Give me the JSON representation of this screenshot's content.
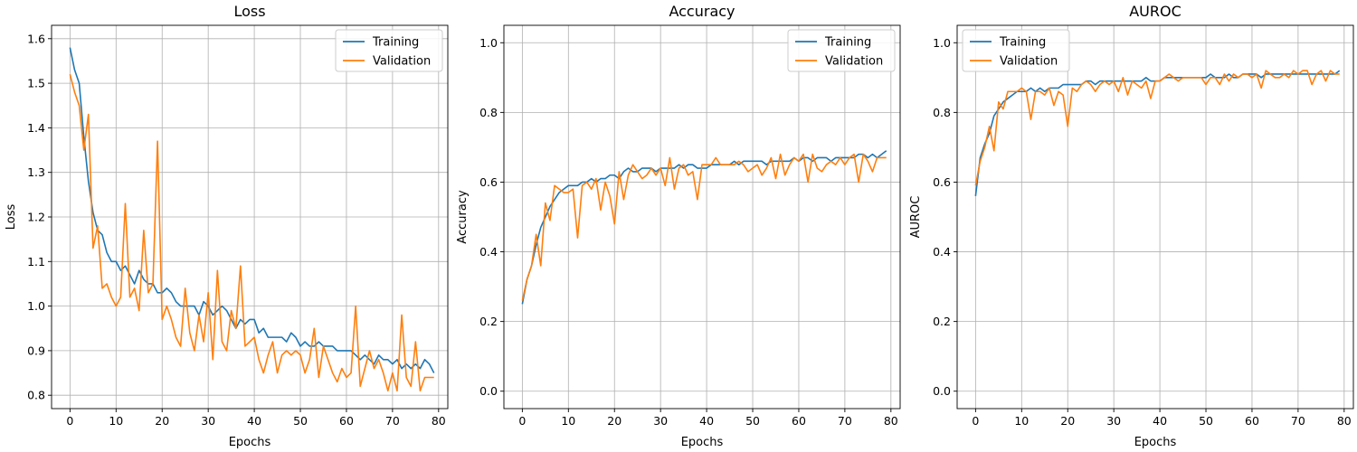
{
  "colors": {
    "training": "#1f77b4",
    "validation": "#ff7f0e"
  },
  "chart_data": [
    {
      "type": "line",
      "title": "Loss",
      "xlabel": "Epochs",
      "ylabel": "Loss",
      "xlim": [
        -4,
        82
      ],
      "ylim": [
        0.77,
        1.63
      ],
      "xticks": [
        0,
        10,
        20,
        30,
        40,
        50,
        60,
        70,
        80
      ],
      "yticks": [
        0.8,
        0.9,
        1.0,
        1.1,
        1.2,
        1.3,
        1.4,
        1.5,
        1.6
      ],
      "grid": true,
      "legend": "top-right",
      "series": [
        {
          "name": "Training",
          "color": "#1f77b4",
          "values": [
            1.58,
            1.53,
            1.5,
            1.38,
            1.28,
            1.21,
            1.17,
            1.16,
            1.12,
            1.1,
            1.1,
            1.08,
            1.09,
            1.07,
            1.05,
            1.08,
            1.06,
            1.05,
            1.05,
            1.03,
            1.03,
            1.04,
            1.03,
            1.01,
            1.0,
            1.0,
            1.0,
            1.0,
            0.98,
            1.01,
            1.0,
            0.98,
            0.99,
            1.0,
            0.99,
            0.97,
            0.95,
            0.97,
            0.96,
            0.97,
            0.97,
            0.94,
            0.95,
            0.93,
            0.93,
            0.93,
            0.93,
            0.92,
            0.94,
            0.93,
            0.91,
            0.92,
            0.91,
            0.91,
            0.92,
            0.91,
            0.91,
            0.91,
            0.9,
            0.9,
            0.9,
            0.9,
            0.89,
            0.88,
            0.89,
            0.88,
            0.87,
            0.89,
            0.88,
            0.88,
            0.87,
            0.88,
            0.86,
            0.87,
            0.86,
            0.87,
            0.86,
            0.88,
            0.87,
            0.85
          ]
        },
        {
          "name": "Validation",
          "color": "#ff7f0e",
          "values": [
            1.52,
            1.48,
            1.45,
            1.35,
            1.43,
            1.13,
            1.18,
            1.04,
            1.05,
            1.02,
            1.0,
            1.02,
            1.23,
            1.02,
            1.04,
            0.99,
            1.17,
            1.03,
            1.05,
            1.37,
            0.97,
            1.0,
            0.97,
            0.93,
            0.91,
            1.04,
            0.94,
            0.9,
            0.98,
            0.92,
            1.03,
            0.88,
            1.08,
            0.92,
            0.9,
            0.99,
            0.95,
            1.09,
            0.91,
            0.92,
            0.93,
            0.88,
            0.85,
            0.89,
            0.92,
            0.85,
            0.89,
            0.9,
            0.89,
            0.9,
            0.89,
            0.85,
            0.88,
            0.95,
            0.84,
            0.91,
            0.88,
            0.85,
            0.83,
            0.86,
            0.84,
            0.85,
            1.0,
            0.82,
            0.86,
            0.9,
            0.86,
            0.88,
            0.85,
            0.81,
            0.85,
            0.81,
            0.98,
            0.84,
            0.82,
            0.92,
            0.81,
            0.84,
            0.84,
            0.84
          ]
        }
      ]
    },
    {
      "type": "line",
      "title": "Accuracy",
      "xlabel": "Epochs",
      "ylabel": "Accuracy",
      "xlim": [
        -4,
        82
      ],
      "ylim": [
        -0.05,
        1.05
      ],
      "xticks": [
        0,
        10,
        20,
        30,
        40,
        50,
        60,
        70,
        80
      ],
      "yticks": [
        0.0,
        0.2,
        0.4,
        0.6,
        0.8,
        1.0
      ],
      "grid": true,
      "legend": "top-right",
      "series": [
        {
          "name": "Training",
          "color": "#1f77b4",
          "values": [
            0.25,
            0.32,
            0.36,
            0.42,
            0.47,
            0.5,
            0.53,
            0.55,
            0.57,
            0.58,
            0.59,
            0.59,
            0.59,
            0.6,
            0.6,
            0.61,
            0.6,
            0.61,
            0.61,
            0.62,
            0.62,
            0.61,
            0.63,
            0.64,
            0.63,
            0.63,
            0.64,
            0.64,
            0.64,
            0.63,
            0.64,
            0.64,
            0.64,
            0.64,
            0.65,
            0.64,
            0.65,
            0.65,
            0.64,
            0.64,
            0.64,
            0.65,
            0.65,
            0.65,
            0.65,
            0.65,
            0.66,
            0.65,
            0.66,
            0.66,
            0.66,
            0.66,
            0.66,
            0.65,
            0.66,
            0.66,
            0.66,
            0.66,
            0.66,
            0.67,
            0.66,
            0.67,
            0.67,
            0.66,
            0.67,
            0.67,
            0.67,
            0.66,
            0.67,
            0.67,
            0.67,
            0.67,
            0.67,
            0.68,
            0.68,
            0.67,
            0.68,
            0.67,
            0.68,
            0.69
          ]
        },
        {
          "name": "Validation",
          "color": "#ff7f0e",
          "values": [
            0.26,
            0.32,
            0.36,
            0.45,
            0.36,
            0.54,
            0.49,
            0.59,
            0.58,
            0.57,
            0.57,
            0.58,
            0.44,
            0.59,
            0.6,
            0.58,
            0.61,
            0.52,
            0.6,
            0.56,
            0.48,
            0.63,
            0.55,
            0.62,
            0.65,
            0.63,
            0.61,
            0.62,
            0.64,
            0.62,
            0.64,
            0.59,
            0.67,
            0.58,
            0.64,
            0.65,
            0.62,
            0.63,
            0.55,
            0.65,
            0.65,
            0.65,
            0.67,
            0.65,
            0.65,
            0.65,
            0.65,
            0.66,
            0.65,
            0.63,
            0.64,
            0.65,
            0.62,
            0.64,
            0.67,
            0.61,
            0.68,
            0.62,
            0.65,
            0.67,
            0.66,
            0.68,
            0.6,
            0.68,
            0.64,
            0.63,
            0.65,
            0.66,
            0.65,
            0.67,
            0.65,
            0.67,
            0.68,
            0.6,
            0.68,
            0.66,
            0.63,
            0.67,
            0.67,
            0.67
          ]
        }
      ]
    },
    {
      "type": "line",
      "title": "AUROC",
      "xlabel": "Epochs",
      "ylabel": "AUROC",
      "xlim": [
        -4,
        82
      ],
      "ylim": [
        -0.05,
        1.05
      ],
      "xticks": [
        0,
        10,
        20,
        30,
        40,
        50,
        60,
        70,
        80
      ],
      "yticks": [
        0.0,
        0.2,
        0.4,
        0.6,
        0.8,
        1.0
      ],
      "grid": true,
      "legend": "top-left",
      "series": [
        {
          "name": "Training",
          "color": "#1f77b4",
          "values": [
            0.56,
            0.67,
            0.71,
            0.74,
            0.79,
            0.81,
            0.83,
            0.84,
            0.85,
            0.86,
            0.86,
            0.86,
            0.87,
            0.86,
            0.87,
            0.86,
            0.87,
            0.87,
            0.87,
            0.88,
            0.88,
            0.88,
            0.88,
            0.88,
            0.89,
            0.89,
            0.88,
            0.89,
            0.89,
            0.89,
            0.89,
            0.89,
            0.89,
            0.89,
            0.89,
            0.89,
            0.89,
            0.9,
            0.89,
            0.89,
            0.89,
            0.9,
            0.9,
            0.9,
            0.9,
            0.9,
            0.9,
            0.9,
            0.9,
            0.9,
            0.9,
            0.91,
            0.9,
            0.9,
            0.9,
            0.91,
            0.9,
            0.9,
            0.91,
            0.91,
            0.91,
            0.91,
            0.9,
            0.91,
            0.91,
            0.91,
            0.91,
            0.91,
            0.91,
            0.91,
            0.91,
            0.91,
            0.91,
            0.91,
            0.91,
            0.91,
            0.91,
            0.91,
            0.91,
            0.92
          ]
        },
        {
          "name": "Validation",
          "color": "#ff7f0e",
          "values": [
            0.59,
            0.66,
            0.7,
            0.76,
            0.69,
            0.83,
            0.81,
            0.86,
            0.86,
            0.86,
            0.87,
            0.86,
            0.78,
            0.86,
            0.86,
            0.85,
            0.87,
            0.82,
            0.86,
            0.85,
            0.76,
            0.87,
            0.86,
            0.88,
            0.89,
            0.88,
            0.86,
            0.88,
            0.89,
            0.88,
            0.89,
            0.86,
            0.9,
            0.85,
            0.89,
            0.88,
            0.87,
            0.89,
            0.84,
            0.89,
            0.89,
            0.9,
            0.91,
            0.9,
            0.89,
            0.9,
            0.9,
            0.9,
            0.9,
            0.9,
            0.88,
            0.9,
            0.9,
            0.88,
            0.91,
            0.89,
            0.91,
            0.9,
            0.91,
            0.91,
            0.9,
            0.91,
            0.87,
            0.92,
            0.91,
            0.9,
            0.9,
            0.91,
            0.9,
            0.92,
            0.91,
            0.92,
            0.92,
            0.88,
            0.91,
            0.92,
            0.89,
            0.92,
            0.91,
            0.91
          ]
        }
      ]
    }
  ]
}
